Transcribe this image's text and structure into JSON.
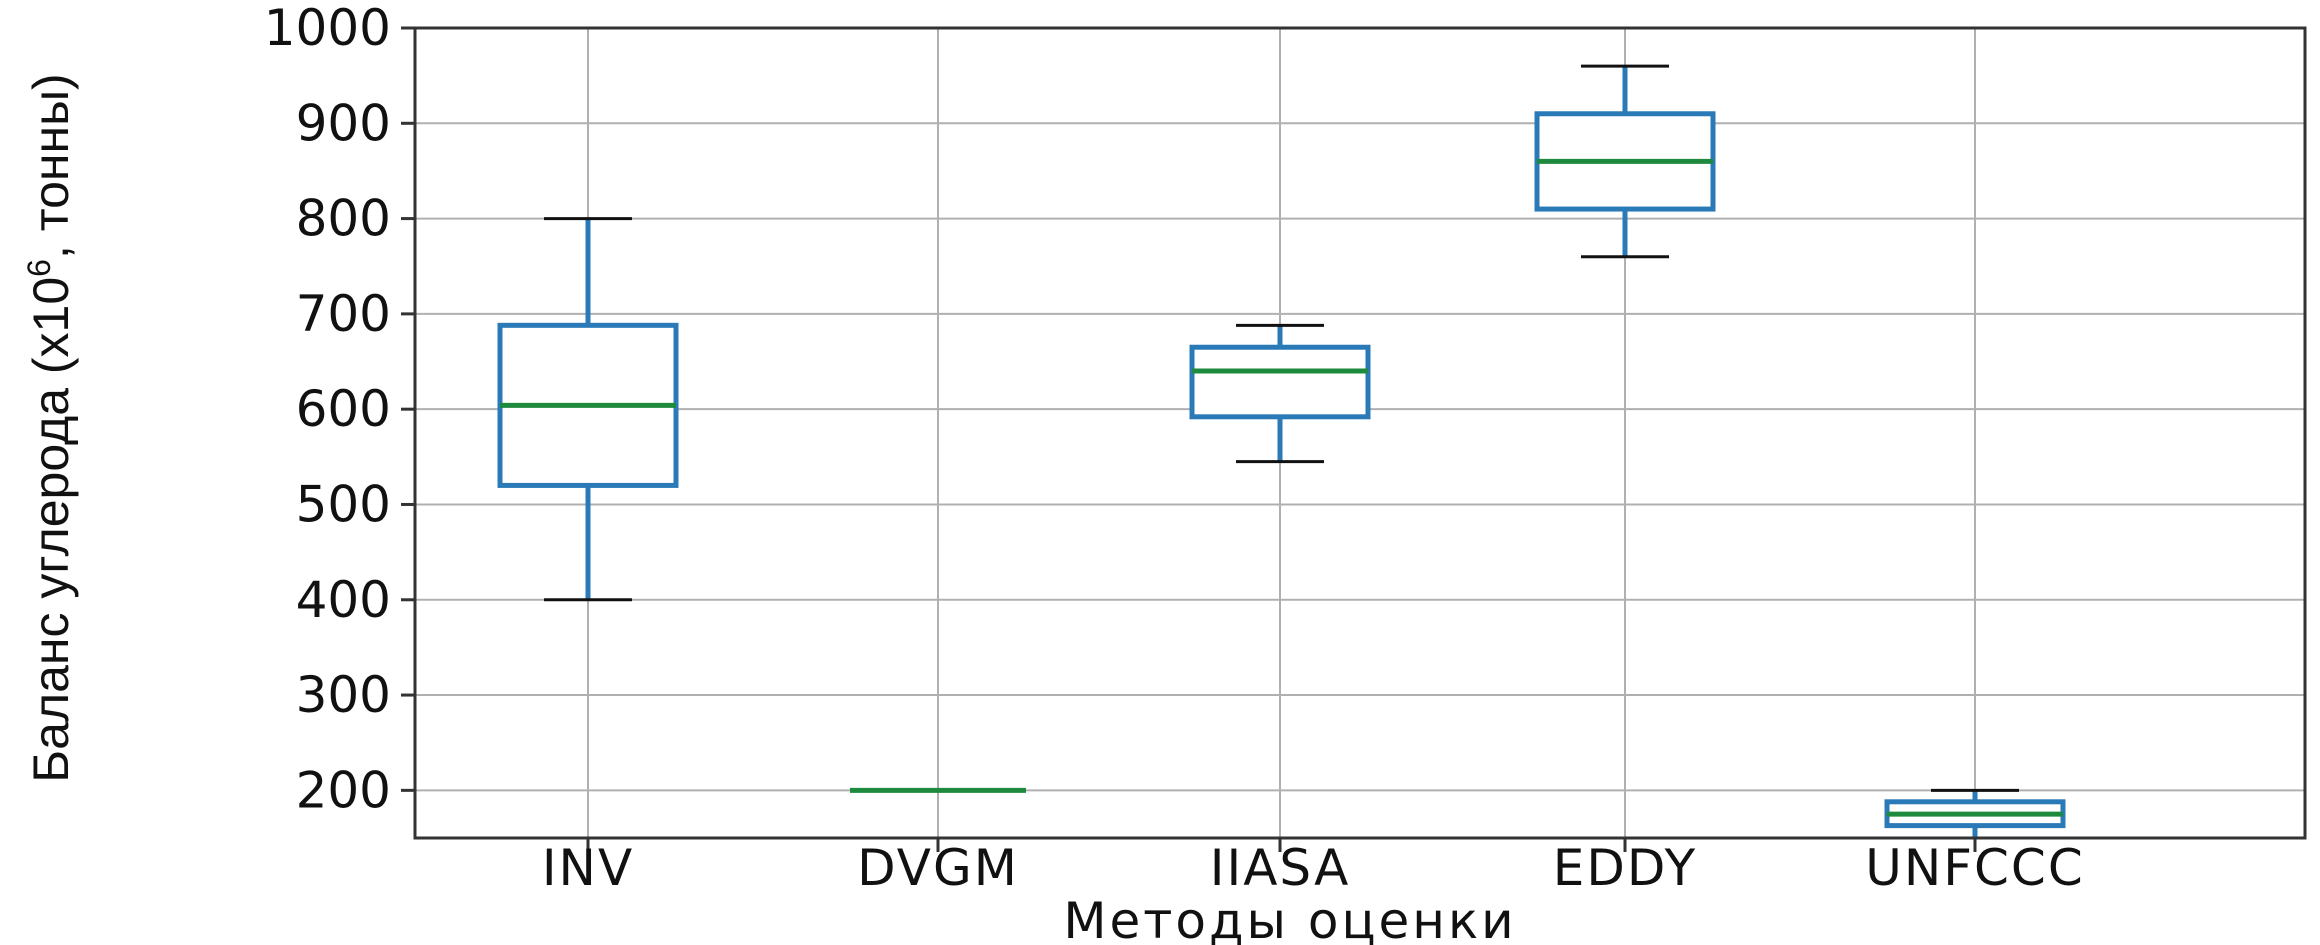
{
  "chart_data": {
    "type": "box",
    "xlabel": "Методы оценки",
    "ylabel_parts": {
      "main": "Баланс углерода (x10",
      "superscript": "6",
      "suffix": ", тонны)"
    },
    "ylim": [
      150,
      1000
    ],
    "yticks": [
      200,
      300,
      400,
      500,
      600,
      700,
      800,
      900,
      1000
    ],
    "grid": true,
    "colors": {
      "box": "#2a7ab8",
      "median": "#1e8a3e",
      "whisker": "#2a7ab8",
      "cap": "#111111",
      "grid": "#b0b0b0",
      "axis": "#333333"
    },
    "categories": [
      "INV",
      "DVGM",
      "IIASA",
      "EDDY",
      "UNFCCC"
    ],
    "boxes": [
      {
        "category": "INV",
        "whislo": 400,
        "q1": 520,
        "med": 604,
        "q3": 688,
        "whishi": 800
      },
      {
        "category": "DVGM",
        "whislo": 200,
        "q1": 200,
        "med": 200,
        "q3": 200,
        "whishi": 200
      },
      {
        "category": "IIASA",
        "whislo": 545,
        "q1": 592,
        "med": 640,
        "q3": 665,
        "whishi": 688
      },
      {
        "category": "EDDY",
        "whislo": 760,
        "q1": 810,
        "med": 860,
        "q3": 910,
        "whishi": 960
      },
      {
        "category": "UNFCCC",
        "whislo": 150,
        "q1": 163,
        "med": 175,
        "q3": 188,
        "whishi": 200
      }
    ]
  }
}
